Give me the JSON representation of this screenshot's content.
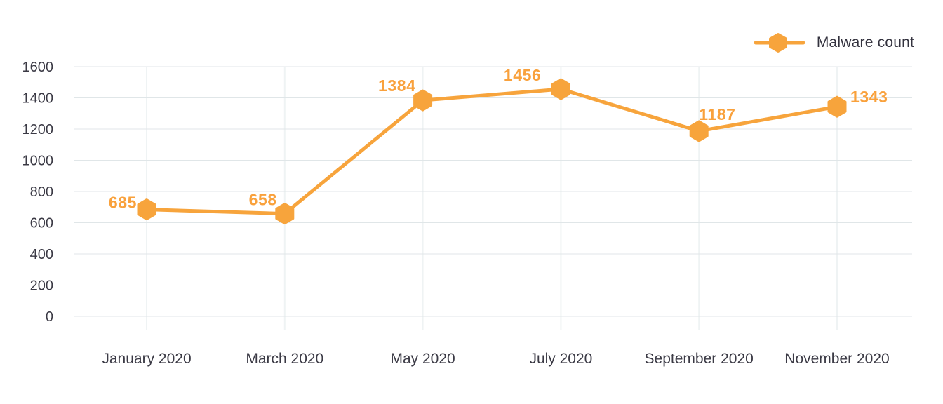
{
  "legend": {
    "label": "Malware count"
  },
  "chart_data": {
    "type": "line",
    "title": "",
    "xlabel": "",
    "ylabel": "",
    "categories": [
      "January 2020",
      "March 2020",
      "May 2020",
      "July 2020",
      "September 2020",
      "November 2020"
    ],
    "series": [
      {
        "name": "Malware count",
        "values": [
          685,
          658,
          1384,
          1456,
          1187,
          1343
        ]
      }
    ],
    "yticks": [
      0,
      200,
      400,
      600,
      800,
      1000,
      1200,
      1400,
      1600
    ],
    "ylim": [
      0,
      1600
    ],
    "grid": true,
    "legend_position": "top-right",
    "marker": "hexagon",
    "colors": {
      "accent": "#f7a43c",
      "data_label": "#f9a13c",
      "grid_major": "#e0e6e8",
      "grid_minor": "#eff3f4",
      "axis_text": "#3b3a45",
      "legend_text": "#33323e",
      "background": "#ffffff"
    }
  }
}
